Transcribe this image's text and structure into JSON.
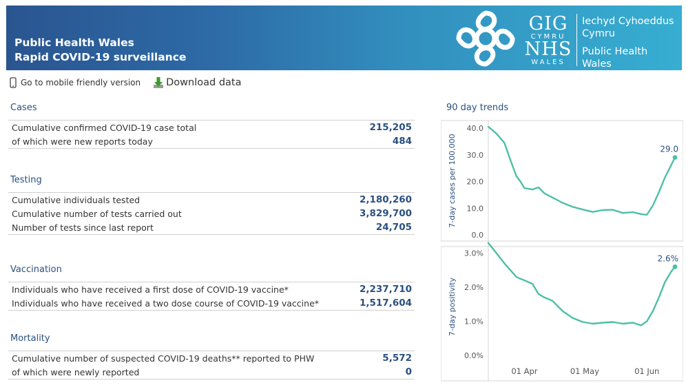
{
  "header": {
    "title_line1": "Public Health Wales",
    "title_line2": "Rapid COVID-19 surveillance",
    "logo_gig": "GIG",
    "logo_cymru": "CYMRU",
    "logo_nhs": "NHS",
    "logo_wales": "WALES",
    "logo_line1": "Iechyd Cyhoeddus",
    "logo_line2": "Cymru",
    "logo_line3": "Public Health",
    "logo_line4": "Wales"
  },
  "toolbar": {
    "mobile_label": "Go to mobile friendly version",
    "download_label": "Download data"
  },
  "sections": {
    "cases": {
      "title": "Cases",
      "rows": [
        {
          "label": "Cumulative confirmed COVID-19 case total",
          "value": "215,205"
        },
        {
          "label": "of which were new reports today",
          "value": "484"
        }
      ]
    },
    "testing": {
      "title": "Testing",
      "rows": [
        {
          "label": "Cumulative individuals tested",
          "value": "2,180,260"
        },
        {
          "label": "Cumulative number of tests carried out",
          "value": "3,829,700"
        },
        {
          "label": "Number of tests since last report",
          "value": "24,705"
        }
      ]
    },
    "vaccination": {
      "title": "Vaccination",
      "rows": [
        {
          "label": "Individuals who have received a first dose of COVID-19 vaccine*",
          "value": "2,237,710"
        },
        {
          "label": "Individuals who have received a two dose course of COVID-19 vaccine*",
          "value": "1,517,604"
        }
      ]
    },
    "mortality": {
      "title": "Mortality",
      "rows": [
        {
          "label": "Cumulative number of suspected COVID-19 deaths** reported to PHW",
          "value": "5,572"
        },
        {
          "label": "of which were newly reported",
          "value": "0"
        }
      ]
    }
  },
  "trends_title": "90 day trends",
  "colors": {
    "accent": "#2a5080",
    "line": "#4dbfa6",
    "banner_start": "#2a5590",
    "banner_end": "#37aed2"
  },
  "chart_data": [
    {
      "type": "line",
      "ylabel": "7-day cases per 100,000",
      "yticks": [
        "40.0",
        "30.0",
        "20.0",
        "10.0",
        "0.0"
      ],
      "ylim": [
        0,
        40
      ],
      "xlim": [
        "2021-03-14",
        "2021-06-15"
      ],
      "end_label": "29.0",
      "x": [
        "2021-03-14",
        "2021-03-18",
        "2021-03-22",
        "2021-03-25",
        "2021-03-28",
        "2021-03-30",
        "2021-04-01",
        "2021-04-05",
        "2021-04-08",
        "2021-04-11",
        "2021-04-15",
        "2021-04-20",
        "2021-04-25",
        "2021-04-30",
        "2021-05-05",
        "2021-05-10",
        "2021-05-15",
        "2021-05-20",
        "2021-05-25",
        "2021-05-29",
        "2021-06-01",
        "2021-06-04",
        "2021-06-07",
        "2021-06-10",
        "2021-06-13",
        "2021-06-15"
      ],
      "values": [
        40.5,
        38.0,
        34.5,
        28.0,
        22.0,
        20.0,
        17.5,
        17.0,
        17.8,
        15.5,
        14.0,
        12.0,
        10.5,
        9.5,
        8.6,
        9.3,
        9.4,
        8.2,
        8.5,
        7.8,
        7.5,
        11.0,
        16.0,
        21.5,
        26.0,
        29.0
      ]
    },
    {
      "type": "line",
      "ylabel": "7-day positivity",
      "yticks": [
        "3.0%",
        "2.0%",
        "1.0%",
        "0.0%"
      ],
      "ylim": [
        0,
        3.3
      ],
      "xlim": [
        "2021-03-14",
        "2021-06-15"
      ],
      "xticks": [
        "01 Apr",
        "01 May",
        "01 Jun"
      ],
      "end_label": "2.6%",
      "x": [
        "2021-03-14",
        "2021-03-18",
        "2021-03-22",
        "2021-03-25",
        "2021-03-28",
        "2021-04-01",
        "2021-04-05",
        "2021-04-08",
        "2021-04-11",
        "2021-04-15",
        "2021-04-20",
        "2021-04-25",
        "2021-04-30",
        "2021-05-05",
        "2021-05-10",
        "2021-05-15",
        "2021-05-20",
        "2021-05-25",
        "2021-05-29",
        "2021-06-01",
        "2021-06-04",
        "2021-06-07",
        "2021-06-10",
        "2021-06-13",
        "2021-06-15"
      ],
      "values": [
        3.3,
        3.0,
        2.7,
        2.5,
        2.3,
        2.2,
        2.1,
        1.8,
        1.7,
        1.6,
        1.3,
        1.1,
        0.98,
        0.93,
        0.96,
        0.98,
        0.93,
        0.96,
        0.88,
        1.0,
        1.3,
        1.7,
        2.15,
        2.45,
        2.6
      ]
    }
  ]
}
